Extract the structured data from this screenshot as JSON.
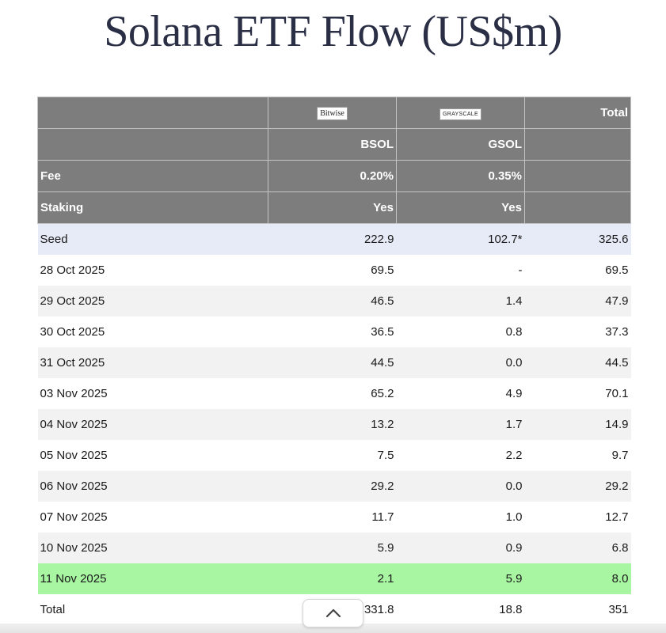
{
  "title": "Solana ETF Flow (US$m)",
  "chart_data": {
    "type": "table",
    "title": "Solana ETF Flow (US$m)",
    "header": {
      "logos": [
        "Bitwise",
        "GRAYSCALE"
      ],
      "total_label": "Total",
      "tickers": [
        "BSOL",
        "GSOL"
      ],
      "fee_label": "Fee",
      "fees": [
        "0.20%",
        "0.35%"
      ],
      "staking_label": "Staking",
      "staking": [
        "Yes",
        "Yes"
      ]
    },
    "rows": [
      {
        "label": "Seed",
        "bsol": "222.9",
        "gsol": "102.7*",
        "total": "325.6"
      },
      {
        "label": "28 Oct 2025",
        "bsol": "69.5",
        "gsol": "-",
        "total": "69.5"
      },
      {
        "label": "29 Oct 2025",
        "bsol": "46.5",
        "gsol": "1.4",
        "total": "47.9"
      },
      {
        "label": "30 Oct 2025",
        "bsol": "36.5",
        "gsol": "0.8",
        "total": "37.3"
      },
      {
        "label": "31 Oct 2025",
        "bsol": "44.5",
        "gsol": "0.0",
        "total": "44.5"
      },
      {
        "label": "03 Nov 2025",
        "bsol": "65.2",
        "gsol": "4.9",
        "total": "70.1"
      },
      {
        "label": "04 Nov 2025",
        "bsol": "13.2",
        "gsol": "1.7",
        "total": "14.9"
      },
      {
        "label": "05 Nov 2025",
        "bsol": "7.5",
        "gsol": "2.2",
        "total": "9.7"
      },
      {
        "label": "06 Nov 2025",
        "bsol": "29.2",
        "gsol": "0.0",
        "total": "29.2"
      },
      {
        "label": "07 Nov 2025",
        "bsol": "11.7",
        "gsol": "1.0",
        "total": "12.7"
      },
      {
        "label": "10 Nov 2025",
        "bsol": "5.9",
        "gsol": "0.9",
        "total": "6.8"
      },
      {
        "label": "11 Nov 2025",
        "bsol": "2.1",
        "gsol": "5.9",
        "total": "8.0"
      },
      {
        "label": "Total",
        "bsol": "331.8",
        "gsol": "18.8",
        "total": "351"
      }
    ]
  },
  "colors": {
    "header_bg": "#7d7d7d",
    "seed_bg": "#e7ebf7",
    "alt_bg": "#f2f2f2",
    "highlight_bg": "#a8f5a2"
  },
  "icons": {
    "scroll_up": "chevron-up-icon"
  }
}
